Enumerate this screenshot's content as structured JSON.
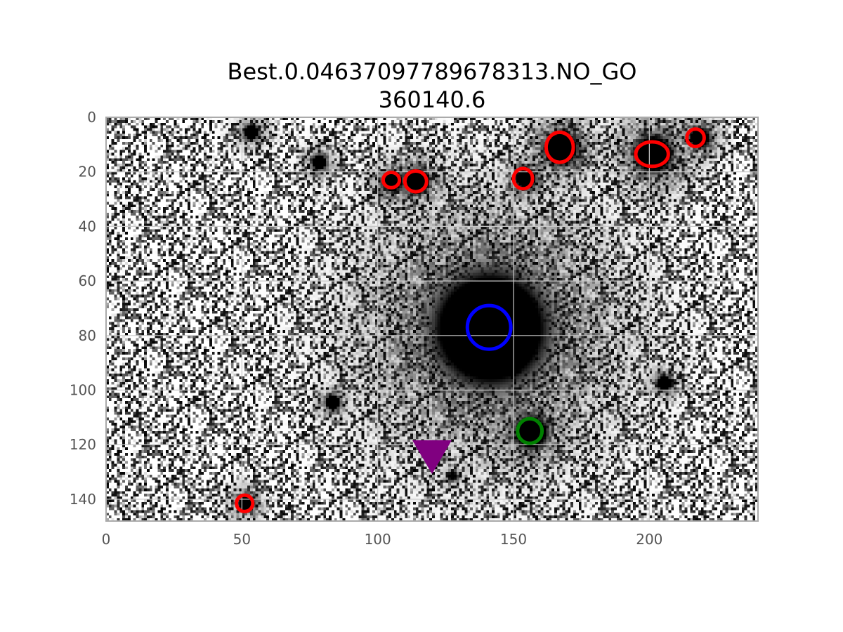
{
  "figure": {
    "title_line1": "Best.0.04637097789678313.NO_GO",
    "title_line2": "360140.6"
  },
  "chart_data": {
    "type": "scatter",
    "title": "Best.0.04637097789678313.NO_GO\n360140.6",
    "xlabel": "",
    "ylabel": "",
    "xlim": [
      0,
      240
    ],
    "ylim": [
      148,
      0
    ],
    "y_inverted": true,
    "grid": true,
    "background": "grayscale noise image with point sources",
    "x_ticks": [
      {
        "value": 0,
        "label": "0"
      },
      {
        "value": 50,
        "label": "50"
      },
      {
        "value": 100,
        "label": "100"
      },
      {
        "value": 150,
        "label": "150"
      },
      {
        "value": 200,
        "label": "200"
      }
    ],
    "y_ticks": [
      {
        "value": 0,
        "label": "0"
      },
      {
        "value": 20,
        "label": "20"
      },
      {
        "value": 40,
        "label": "40"
      },
      {
        "value": 60,
        "label": "60"
      },
      {
        "value": 80,
        "label": "80"
      },
      {
        "value": 100,
        "label": "100"
      },
      {
        "value": 120,
        "label": "120"
      },
      {
        "value": 140,
        "label": "140"
      }
    ],
    "sources": [
      {
        "x": 141,
        "y": 77,
        "r": 14,
        "peak": 1.0
      },
      {
        "x": 156,
        "y": 115,
        "r": 4,
        "peak": 1.0
      },
      {
        "x": 167,
        "y": 11,
        "r": 4,
        "peak": 1.0
      },
      {
        "x": 201,
        "y": 13,
        "r": 4.5,
        "peak": 1.0
      },
      {
        "x": 218,
        "y": 7,
        "r": 2.5,
        "peak": 1.0
      },
      {
        "x": 114,
        "y": 23,
        "r": 3,
        "peak": 1.0
      },
      {
        "x": 105,
        "y": 23,
        "r": 2.5,
        "peak": 1.0
      },
      {
        "x": 154,
        "y": 22,
        "r": 2.5,
        "peak": 1.0
      },
      {
        "x": 51,
        "y": 141,
        "r": 2,
        "peak": 1.0
      },
      {
        "x": 53,
        "y": 5,
        "r": 2,
        "peak": 0.8
      },
      {
        "x": 78,
        "y": 16,
        "r": 2,
        "peak": 0.8
      },
      {
        "x": 83,
        "y": 104,
        "r": 2,
        "peak": 0.8
      },
      {
        "x": 205,
        "y": 97,
        "r": 2,
        "peak": 0.8
      },
      {
        "x": 149,
        "y": 93,
        "r": 2,
        "peak": 0.7
      },
      {
        "x": 127,
        "y": 131,
        "r": 1.5,
        "peak": 0.6
      }
    ],
    "markers": [
      {
        "name": "blue-circle",
        "shape": "circle",
        "x": 141,
        "y": 77,
        "rx": 8,
        "ry": 8,
        "color": "#0000ff"
      },
      {
        "name": "green-circle",
        "shape": "circle",
        "x": 156,
        "y": 115,
        "rx": 4.5,
        "ry": 4.5,
        "color": "#008000"
      },
      {
        "name": "red-ellipse",
        "shape": "ellipse",
        "x": 167,
        "y": 11,
        "rx": 5,
        "ry": 5.5,
        "color": "#ff0000"
      },
      {
        "name": "red-ellipse",
        "shape": "ellipse",
        "x": 201,
        "y": 13.5,
        "rx": 6,
        "ry": 4.5,
        "color": "#ff0000"
      },
      {
        "name": "red-ellipse",
        "shape": "ellipse",
        "x": 217,
        "y": 7.5,
        "rx": 3.2,
        "ry": 3.2,
        "color": "#ff0000"
      },
      {
        "name": "red-ellipse",
        "shape": "ellipse",
        "x": 114,
        "y": 23.5,
        "rx": 4,
        "ry": 3.8,
        "color": "#ff0000"
      },
      {
        "name": "red-ellipse",
        "shape": "ellipse",
        "x": 105,
        "y": 23,
        "rx": 3,
        "ry": 2.8,
        "color": "#ff0000"
      },
      {
        "name": "red-ellipse",
        "shape": "ellipse",
        "x": 153.5,
        "y": 22.5,
        "rx": 3.5,
        "ry": 3.7,
        "color": "#ff0000"
      },
      {
        "name": "red-ellipse",
        "shape": "ellipse",
        "x": 51,
        "y": 141.5,
        "rx": 3,
        "ry": 3,
        "color": "#ff0000"
      },
      {
        "name": "purple-triangle",
        "shape": "triangle-down",
        "x": 120,
        "y": 122,
        "color": "#800080"
      }
    ],
    "colors": {
      "axis_frame": "#aaaaaa",
      "grid": "#c8c8c8",
      "tick_label": "#555555"
    }
  }
}
